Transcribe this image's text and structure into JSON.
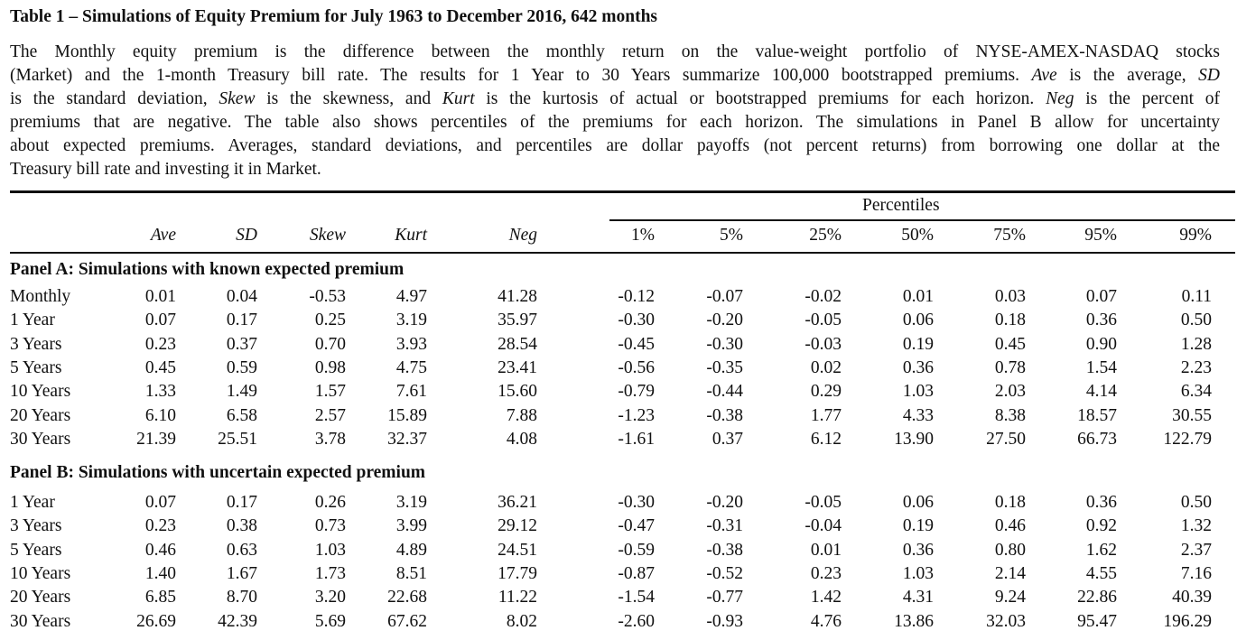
{
  "title": "Table 1 – Simulations of Equity Premium for July 1963 to December 2016, 642 months",
  "caption_lines": [
    [
      "The Monthly equity premium is the difference between the monthly return on the value-weight portfolio of NYSE-AMEX-NASDAQ stocks"
    ],
    [
      "(Market) and the 1-month Treasury bill rate. The results for 1 Year to 30 Years summarize 100,000 bootstrapped premiums. ",
      "Ave",
      " is the average, ",
      "SD"
    ],
    [
      "is the standard deviation, ",
      "Skew",
      " is the skewness, and ",
      "Kurt",
      " is the kurtosis of actual or bootstrapped premiums for each horizon. ",
      "Neg",
      " is the percent of"
    ],
    [
      "premiums that are negative. The table also shows percentiles of the premiums for each horizon. The simulations in Panel B allow for uncertainty"
    ],
    [
      "about expected premiums. Averages, standard deviations, and percentiles are dollar payoffs (not percent returns) from borrowing one dollar at the"
    ],
    [
      "Treasury bill rate and investing it in Market."
    ]
  ],
  "percentiles_label": "Percentiles",
  "columns": [
    "Ave",
    "SD",
    "Skew",
    "Kurt",
    "Neg",
    "1%",
    "5%",
    "25%",
    "50%",
    "75%",
    "95%",
    "99%"
  ],
  "panels": [
    {
      "label": "Panel A: Simulations with known expected premium",
      "rows": [
        {
          "label": "Monthly",
          "values": [
            "0.01",
            "0.04",
            "-0.53",
            "4.97",
            "41.28",
            "-0.12",
            "-0.07",
            "-0.02",
            "0.01",
            "0.03",
            "0.07",
            "0.11"
          ]
        },
        {
          "label": "1 Year",
          "values": [
            "0.07",
            "0.17",
            "0.25",
            "3.19",
            "35.97",
            "-0.30",
            "-0.20",
            "-0.05",
            "0.06",
            "0.18",
            "0.36",
            "0.50"
          ]
        },
        {
          "label": "3 Years",
          "values": [
            "0.23",
            "0.37",
            "0.70",
            "3.93",
            "28.54",
            "-0.45",
            "-0.30",
            "-0.03",
            "0.19",
            "0.45",
            "0.90",
            "1.28"
          ]
        },
        {
          "label": "5 Years",
          "values": [
            "0.45",
            "0.59",
            "0.98",
            "4.75",
            "23.41",
            "-0.56",
            "-0.35",
            "0.02",
            "0.36",
            "0.78",
            "1.54",
            "2.23"
          ]
        },
        {
          "label": "10 Years",
          "values": [
            "1.33",
            "1.49",
            "1.57",
            "7.61",
            "15.60",
            "-0.79",
            "-0.44",
            "0.29",
            "1.03",
            "2.03",
            "4.14",
            "6.34"
          ]
        },
        {
          "label": "20 Years",
          "values": [
            "6.10",
            "6.58",
            "2.57",
            "15.89",
            "7.88",
            "-1.23",
            "-0.38",
            "1.77",
            "4.33",
            "8.38",
            "18.57",
            "30.55"
          ]
        },
        {
          "label": "30 Years",
          "values": [
            "21.39",
            "25.51",
            "3.78",
            "32.37",
            "4.08",
            "-1.61",
            "0.37",
            "6.12",
            "13.90",
            "27.50",
            "66.73",
            "122.79"
          ]
        }
      ]
    },
    {
      "label": "Panel B: Simulations with uncertain expected premium",
      "rows": [
        {
          "label": "1 Year",
          "values": [
            "0.07",
            "0.17",
            "0.26",
            "3.19",
            "36.21",
            "-0.30",
            "-0.20",
            "-0.05",
            "0.06",
            "0.18",
            "0.36",
            "0.50"
          ]
        },
        {
          "label": "3 Years",
          "values": [
            "0.23",
            "0.38",
            "0.73",
            "3.99",
            "29.12",
            "-0.47",
            "-0.31",
            "-0.04",
            "0.19",
            "0.46",
            "0.92",
            "1.32"
          ]
        },
        {
          "label": "5 Years",
          "values": [
            "0.46",
            "0.63",
            "1.03",
            "4.89",
            "24.51",
            "-0.59",
            "-0.38",
            "0.01",
            "0.36",
            "0.80",
            "1.62",
            "2.37"
          ]
        },
        {
          "label": "10 Years",
          "values": [
            "1.40",
            "1.67",
            "1.73",
            "8.51",
            "17.79",
            "-0.87",
            "-0.52",
            "0.23",
            "1.03",
            "2.14",
            "4.55",
            "7.16"
          ]
        },
        {
          "label": "20 Years",
          "values": [
            "6.85",
            "8.70",
            "3.20",
            "22.68",
            "11.22",
            "-1.54",
            "-0.77",
            "1.42",
            "4.31",
            "9.24",
            "22.86",
            "40.39"
          ]
        },
        {
          "label": "30 Years",
          "values": [
            "26.69",
            "42.39",
            "5.69",
            "67.62",
            "8.02",
            "-2.60",
            "-0.93",
            "4.76",
            "13.86",
            "32.03",
            "95.47",
            "196.29"
          ]
        }
      ]
    }
  ]
}
